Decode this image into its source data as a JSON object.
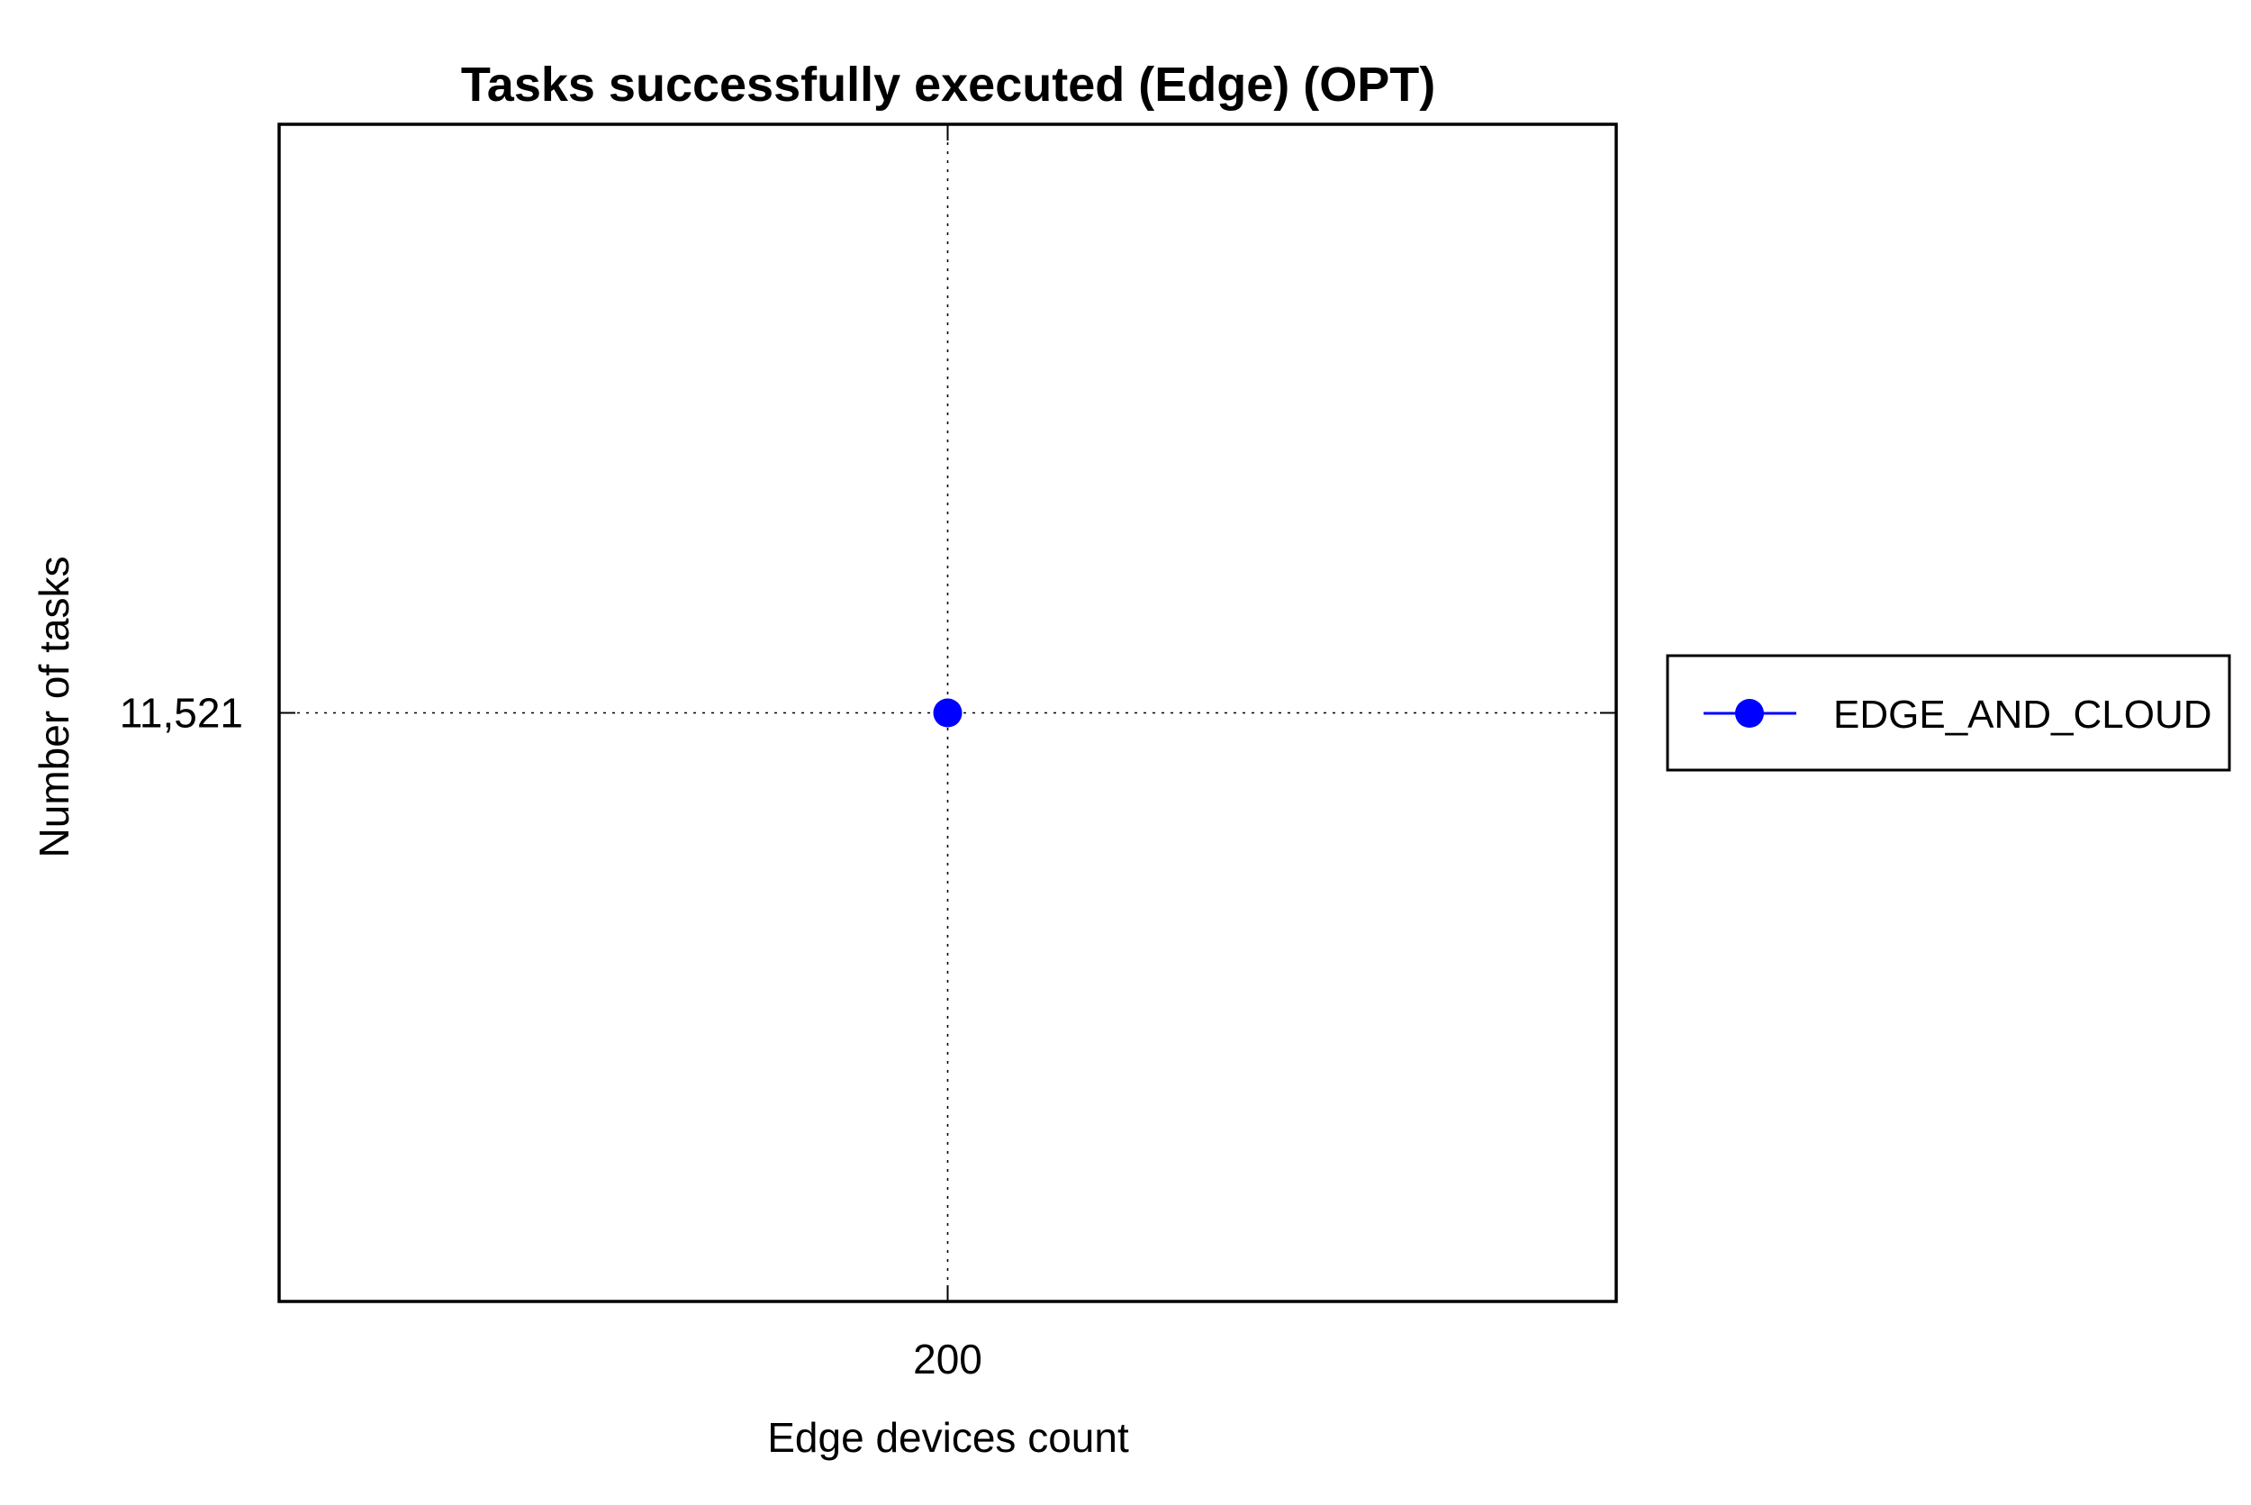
{
  "chart_data": {
    "type": "line",
    "title": "Tasks successfully executed (Edge) (OPT)",
    "xlabel": "Edge devices count",
    "ylabel": "Number of tasks",
    "x": [
      200
    ],
    "x_ticks": [
      "200"
    ],
    "y_ticks": [
      "11,521"
    ],
    "y_tick_values": [
      11521
    ],
    "series": [
      {
        "name": "EDGE_AND_CLOUD",
        "x": [
          200
        ],
        "values": [
          11521
        ],
        "color": "#0000ff",
        "marker": "circle"
      }
    ],
    "grid": true,
    "grid_style": "dotted",
    "legend_position": "right"
  }
}
